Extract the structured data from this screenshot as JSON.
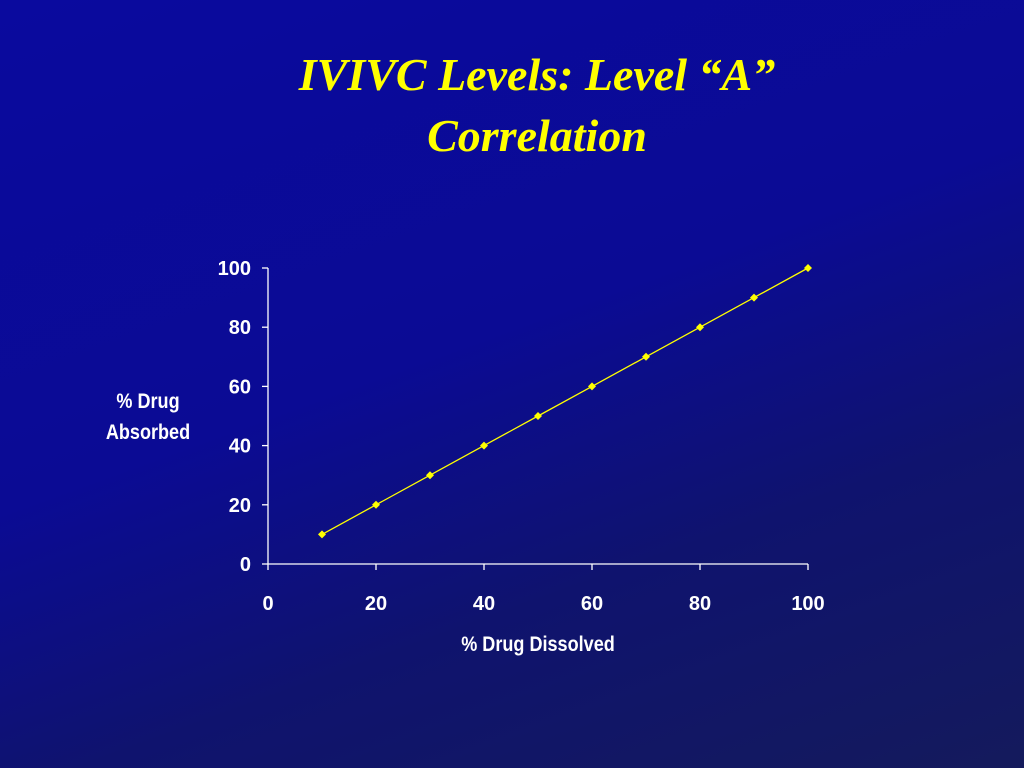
{
  "slide": {
    "title_line1": "IVIVC Levels: Level “A”",
    "title_line2": "Correlation"
  },
  "colors": {
    "background": "#0a0a9e",
    "title": "#ffff00",
    "series": "#ffff00",
    "axis": "#ffffff"
  },
  "chart_data": {
    "type": "scatter",
    "xlabel": "% Drug Dissolved",
    "ylabel_line1": "% Drug",
    "ylabel_line2": "Absorbed",
    "xlim": [
      0,
      100
    ],
    "ylim": [
      0,
      100
    ],
    "x_ticks": [
      "0",
      "20",
      "40",
      "60",
      "80",
      "100"
    ],
    "y_ticks": [
      "0",
      "20",
      "40",
      "60",
      "80",
      "100"
    ],
    "grid": false,
    "legend": "none",
    "marker": "diamond",
    "lines_connect_points": true,
    "series": [
      {
        "x": [
          10,
          20,
          30,
          40,
          50,
          60,
          70,
          80,
          90,
          100
        ],
        "y": [
          10,
          20,
          30,
          40,
          50,
          60,
          70,
          80,
          90,
          100
        ]
      }
    ]
  }
}
